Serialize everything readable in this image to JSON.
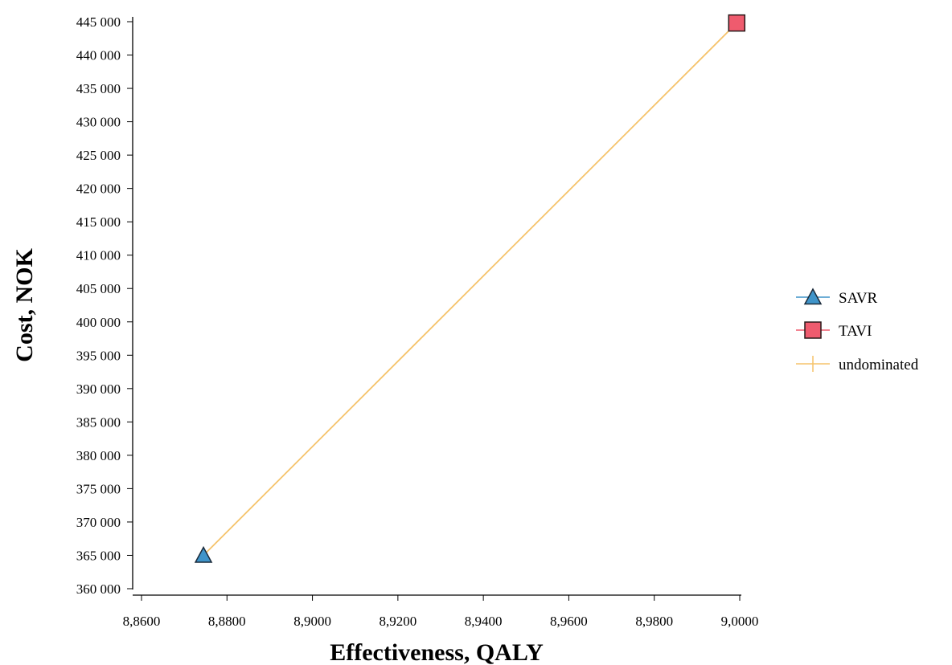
{
  "chart_data": {
    "type": "scatter",
    "title": "",
    "xlabel": "Effectiveness, QALY",
    "ylabel": "Cost, NOK",
    "xlim": [
      8.86,
      9.0
    ],
    "ylim": [
      360000,
      445000
    ],
    "x_ticks": [
      "8,8600",
      "8,8800",
      "8,9000",
      "8,9200",
      "8,9400",
      "8,9600",
      "8,9800",
      "9,0000"
    ],
    "y_ticks": [
      "360 000",
      "365 000",
      "370 000",
      "375 000",
      "380 000",
      "385 000",
      "390 000",
      "395 000",
      "400 000",
      "405 000",
      "410 000",
      "415 000",
      "420 000",
      "425 000",
      "430 000",
      "435 000",
      "440 000",
      "445 000"
    ],
    "grid": false,
    "legend_position": "right",
    "series": [
      {
        "name": "SAVR",
        "marker": "triangle",
        "color": "#3f94c9",
        "x": [
          8.8745
        ],
        "y": [
          365000
        ]
      },
      {
        "name": "TAVI",
        "marker": "square",
        "color": "#ef5b6e",
        "x": [
          8.9993
        ],
        "y": [
          444800
        ]
      },
      {
        "name": "undominated",
        "marker": "line",
        "color": "#f5c36b",
        "x": [
          8.8745,
          8.9993
        ],
        "y": [
          365000,
          444800
        ]
      }
    ]
  }
}
